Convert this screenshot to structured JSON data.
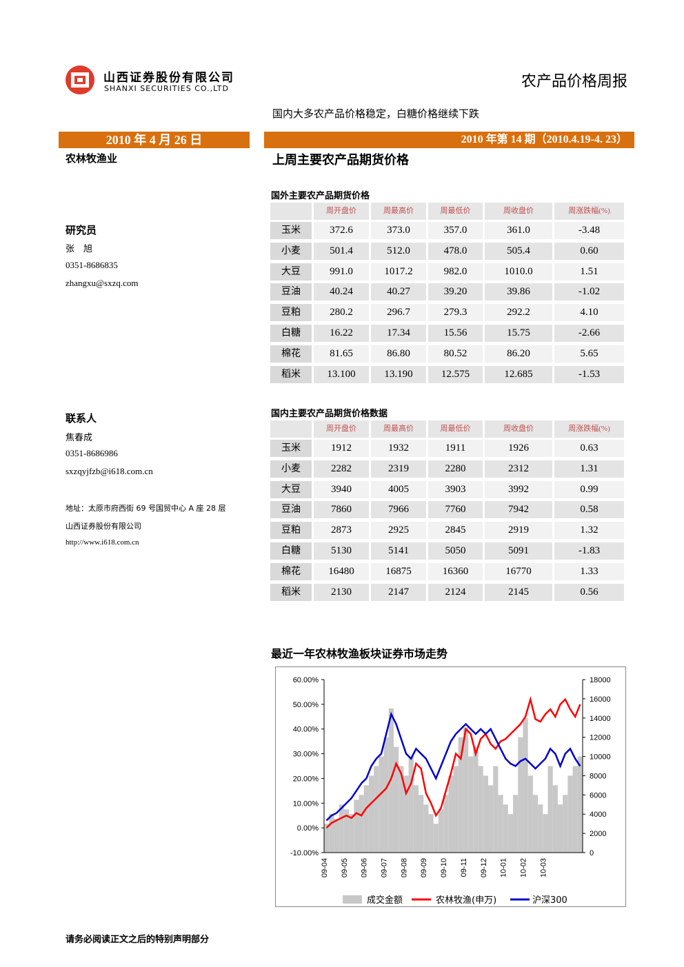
{
  "header": {
    "company_cn": "山西证券股份有限公司",
    "company_en": "SHANXI SECURITIES CO.,LTD",
    "report_title": "农产品价格周报"
  },
  "subtitle": "国内大多农产品价格稳定，白糖价格继续下跌",
  "date": "2010 年 4 月 26 日",
  "issue": "2010 年第 14 期（2010.4.19-4. 23）",
  "sector": "农林牧渔业",
  "section_title": "上周主要农产品期货价格",
  "researcher": {
    "heading": "研究员",
    "name": "张　旭",
    "phone": "0351-8686835",
    "email": "zhangxu@sxzq.com"
  },
  "contact": {
    "heading": "联系人",
    "name": "焦春成",
    "phone": "0351-8686986",
    "email": "sxzqyjfzb@i618.com.cn"
  },
  "address": "地址：太原市府西街 69 号国贸中心 A 座 28 层",
  "company": "山西证券股份有限公司",
  "website": "http://www.i618.com.cn",
  "foreign_table": {
    "title": "国外主要农产品期货价格",
    "headers": [
      "周开盘价",
      "周最高价",
      "周最低价",
      "周收盘价",
      "周涨跌幅(%)"
    ],
    "rows": [
      {
        "name": "玉米",
        "values": [
          "372.6",
          "373.0",
          "357.0",
          "361.0",
          "-3.48"
        ]
      },
      {
        "name": "小麦",
        "values": [
          "501.4",
          "512.0",
          "478.0",
          "505.4",
          "0.60"
        ]
      },
      {
        "name": "大豆",
        "values": [
          "991.0",
          "1017.2",
          "982.0",
          "1010.0",
          "1.51"
        ]
      },
      {
        "name": "豆油",
        "values": [
          "40.24",
          "40.27",
          "39.20",
          "39.86",
          "-1.02"
        ]
      },
      {
        "name": "豆粕",
        "values": [
          "280.2",
          "296.7",
          "279.3",
          "292.2",
          "4.10"
        ]
      },
      {
        "name": "白糖",
        "values": [
          "16.22",
          "17.34",
          "15.56",
          "15.75",
          "-2.66"
        ]
      },
      {
        "name": "棉花",
        "values": [
          "81.65",
          "86.80",
          "80.52",
          "86.20",
          "5.65"
        ]
      },
      {
        "name": "稻米",
        "values": [
          "13.100",
          "13.190",
          "12.575",
          "12.685",
          "-1.53"
        ]
      }
    ]
  },
  "domestic_table": {
    "title": "国内主要农产品期货价格数据",
    "headers": [
      "周开盘价",
      "周最高价",
      "周最低价",
      "周收盘价",
      "周涨跌幅(%)"
    ],
    "rows": [
      {
        "name": "玉米",
        "values": [
          "1912",
          "1932",
          "1911",
          "1926",
          "0.63"
        ]
      },
      {
        "name": "小麦",
        "values": [
          "2282",
          "2319",
          "2280",
          "2312",
          "1.31"
        ]
      },
      {
        "name": "大豆",
        "values": [
          "3940",
          "4005",
          "3903",
          "3992",
          "0.99"
        ]
      },
      {
        "name": "豆油",
        "values": [
          "7860",
          "7966",
          "7760",
          "7942",
          "0.58"
        ]
      },
      {
        "name": "豆粕",
        "values": [
          "2873",
          "2925",
          "2845",
          "2919",
          "1.32"
        ]
      },
      {
        "name": "白糖",
        "values": [
          "5130",
          "5141",
          "5050",
          "5091",
          "-1.83"
        ]
      },
      {
        "name": "棉花",
        "values": [
          "16480",
          "16875",
          "16360",
          "16770",
          "1.33"
        ]
      },
      {
        "name": "稻米",
        "values": [
          "2130",
          "2147",
          "2124",
          "2145",
          "0.56"
        ]
      }
    ]
  },
  "chart_title": "最近一年农林牧渔板块证券市场走势",
  "chart_data": {
    "type": "combo",
    "categories": [
      "09-04",
      null,
      null,
      null,
      "09-05",
      null,
      null,
      null,
      "09-06",
      null,
      null,
      null,
      "09-07",
      null,
      null,
      null,
      "09-08",
      null,
      null,
      null,
      "09-09",
      null,
      null,
      null,
      "09-10",
      null,
      null,
      null,
      "09-11",
      null,
      null,
      null,
      "09-12",
      null,
      null,
      null,
      "10-01",
      null,
      null,
      null,
      "10-02",
      null,
      null,
      null,
      "10-03",
      null,
      null,
      null,
      null,
      null,
      null,
      null
    ],
    "series": [
      {
        "name": "成交金额",
        "type": "bar",
        "axis": "y2",
        "color": "#c8c8c8",
        "values": [
          3000,
          4000,
          3500,
          5000,
          4500,
          4000,
          5500,
          6000,
          7000,
          8000,
          9000,
          10000,
          12000,
          15000,
          11000,
          9000,
          8000,
          10000,
          7000,
          6000,
          5000,
          4000,
          3000,
          4500,
          6000,
          8000,
          9000,
          12000,
          13000,
          10000,
          11000,
          9000,
          8000,
          7000,
          9000,
          6000,
          5000,
          4000,
          6000,
          12000,
          14000,
          8000,
          6000,
          5000,
          4000,
          9000,
          7000,
          5000,
          6000,
          8000,
          9000,
          10000
        ]
      },
      {
        "name": "农林牧渔(申万)",
        "type": "line",
        "color": "#ff0000",
        "values": [
          0,
          2,
          3,
          4,
          5,
          4,
          6,
          5,
          8,
          10,
          12,
          14,
          16,
          20,
          26,
          22,
          14,
          18,
          26,
          24,
          14,
          10,
          5,
          8,
          15,
          22,
          30,
          28,
          40,
          38,
          30,
          36,
          38,
          34,
          32,
          35,
          36,
          38,
          40,
          42,
          45,
          52,
          44,
          43,
          46,
          48,
          45,
          50,
          52,
          48,
          45,
          50
        ]
      },
      {
        "name": "沪深300",
        "type": "line",
        "color": "#0000cc",
        "values": [
          3,
          5,
          6,
          8,
          10,
          12,
          15,
          18,
          20,
          25,
          28,
          30,
          38,
          46,
          42,
          36,
          30,
          28,
          32,
          30,
          28,
          24,
          20,
          25,
          30,
          35,
          38,
          40,
          42,
          40,
          38,
          40,
          38,
          40,
          36,
          32,
          28,
          26,
          25,
          27,
          28,
          26,
          24,
          26,
          28,
          32,
          30,
          25,
          30,
          32,
          28,
          25
        ]
      }
    ],
    "ylim": [
      -10,
      60
    ],
    "yticks": [
      {
        "value": -10,
        "label": "-10.00%"
      },
      {
        "value": 0,
        "label": "0.00%"
      },
      {
        "value": 10,
        "label": "10.00%"
      },
      {
        "value": 20,
        "label": "20.00%"
      },
      {
        "value": 30,
        "label": "30.00%"
      },
      {
        "value": 40,
        "label": "40.00%"
      },
      {
        "value": 50,
        "label": "50.00%"
      },
      {
        "value": 60,
        "label": "60.00%"
      }
    ],
    "y2lim": [
      0,
      18000
    ],
    "y2ticks": [
      0,
      2000,
      4000,
      6000,
      8000,
      10000,
      12000,
      14000,
      16000,
      18000
    ],
    "legend": "bottom"
  },
  "footer": "请务必阅读正文之后的特别声明部分"
}
